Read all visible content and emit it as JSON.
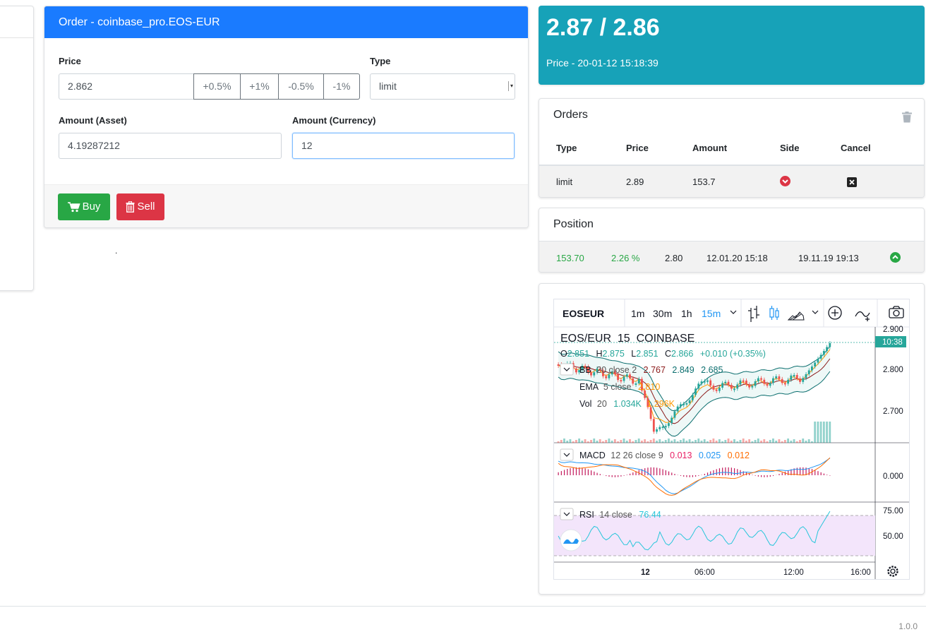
{
  "order": {
    "title": "Order - coinbase_pro.EOS-EUR",
    "price_label": "Price",
    "price_value": "2.862",
    "adjust_buttons": [
      "+0.5%",
      "+1%",
      "-0.5%",
      "-1%"
    ],
    "type_label": "Type",
    "type_value": "limit",
    "amount_asset_label": "Amount (Asset)",
    "amount_asset_value": "4.19287212",
    "amount_currency_label": "Amount (Currency)",
    "amount_currency_value": "12",
    "buy_label": "Buy",
    "sell_label": "Sell"
  },
  "ticker": {
    "price": "2.87 / 2.86",
    "subtitle": "Price - 20-01-12 15:18:39"
  },
  "orders": {
    "title": "Orders",
    "columns": [
      "Type",
      "Price",
      "Amount",
      "Side",
      "Cancel"
    ],
    "rows": [
      {
        "type": "limit",
        "price": "2.89",
        "amount": "153.7"
      }
    ]
  },
  "position": {
    "title": "Position",
    "amount": "153.70",
    "profit": "2.26 %",
    "entry": "2.80",
    "updated": "12.01.20 15:18",
    "opened": "19.11.19 19:13"
  },
  "chart": {
    "symbol": "EOSEUR",
    "intervals": [
      "1m",
      "30m",
      "1h",
      "15m"
    ],
    "active_interval": "15m",
    "legend_title": "EOS/EUR  15  COINBASE",
    "ohlc": {
      "o_label": "O",
      "o": "2.851",
      "h_label": "H",
      "h": "2.875",
      "l_label": "L",
      "l": "2.851",
      "c_label": "C",
      "c": "2.866",
      "chg": "+0.010 (+0.35%)"
    },
    "bb": {
      "name": "BB",
      "params": "20 close 2",
      "v1": "2.767",
      "v2": "2.849",
      "v3": "2.685"
    },
    "ema": {
      "name": "EMA",
      "params": "5 close",
      "v": "2.810"
    },
    "vol": {
      "name": "Vol",
      "params": "20",
      "v1": "1.034K",
      "v2": "1.296K"
    },
    "macd": {
      "name": "MACD",
      "params": "12 26 close 9",
      "v1": "0.013",
      "v2": "0.025",
      "v3": "0.012"
    },
    "rsi": {
      "name": "RSI",
      "params": "14 close",
      "v": "76.44"
    },
    "price_ticks": [
      "2.900",
      "2.800",
      "2.700"
    ],
    "last_time_label": "10:38",
    "macd_tick": "0.000",
    "rsi_ticks": [
      "75.00",
      "50.00"
    ],
    "time_ticks": [
      "12",
      "06:00",
      "12:00",
      "16:00"
    ],
    "colors": {
      "up": "#26a69a",
      "down": "#ef5350",
      "bb": "#2196f3",
      "ema": "#ff9800"
    }
  },
  "footer": {
    "version": "1.0.0"
  }
}
